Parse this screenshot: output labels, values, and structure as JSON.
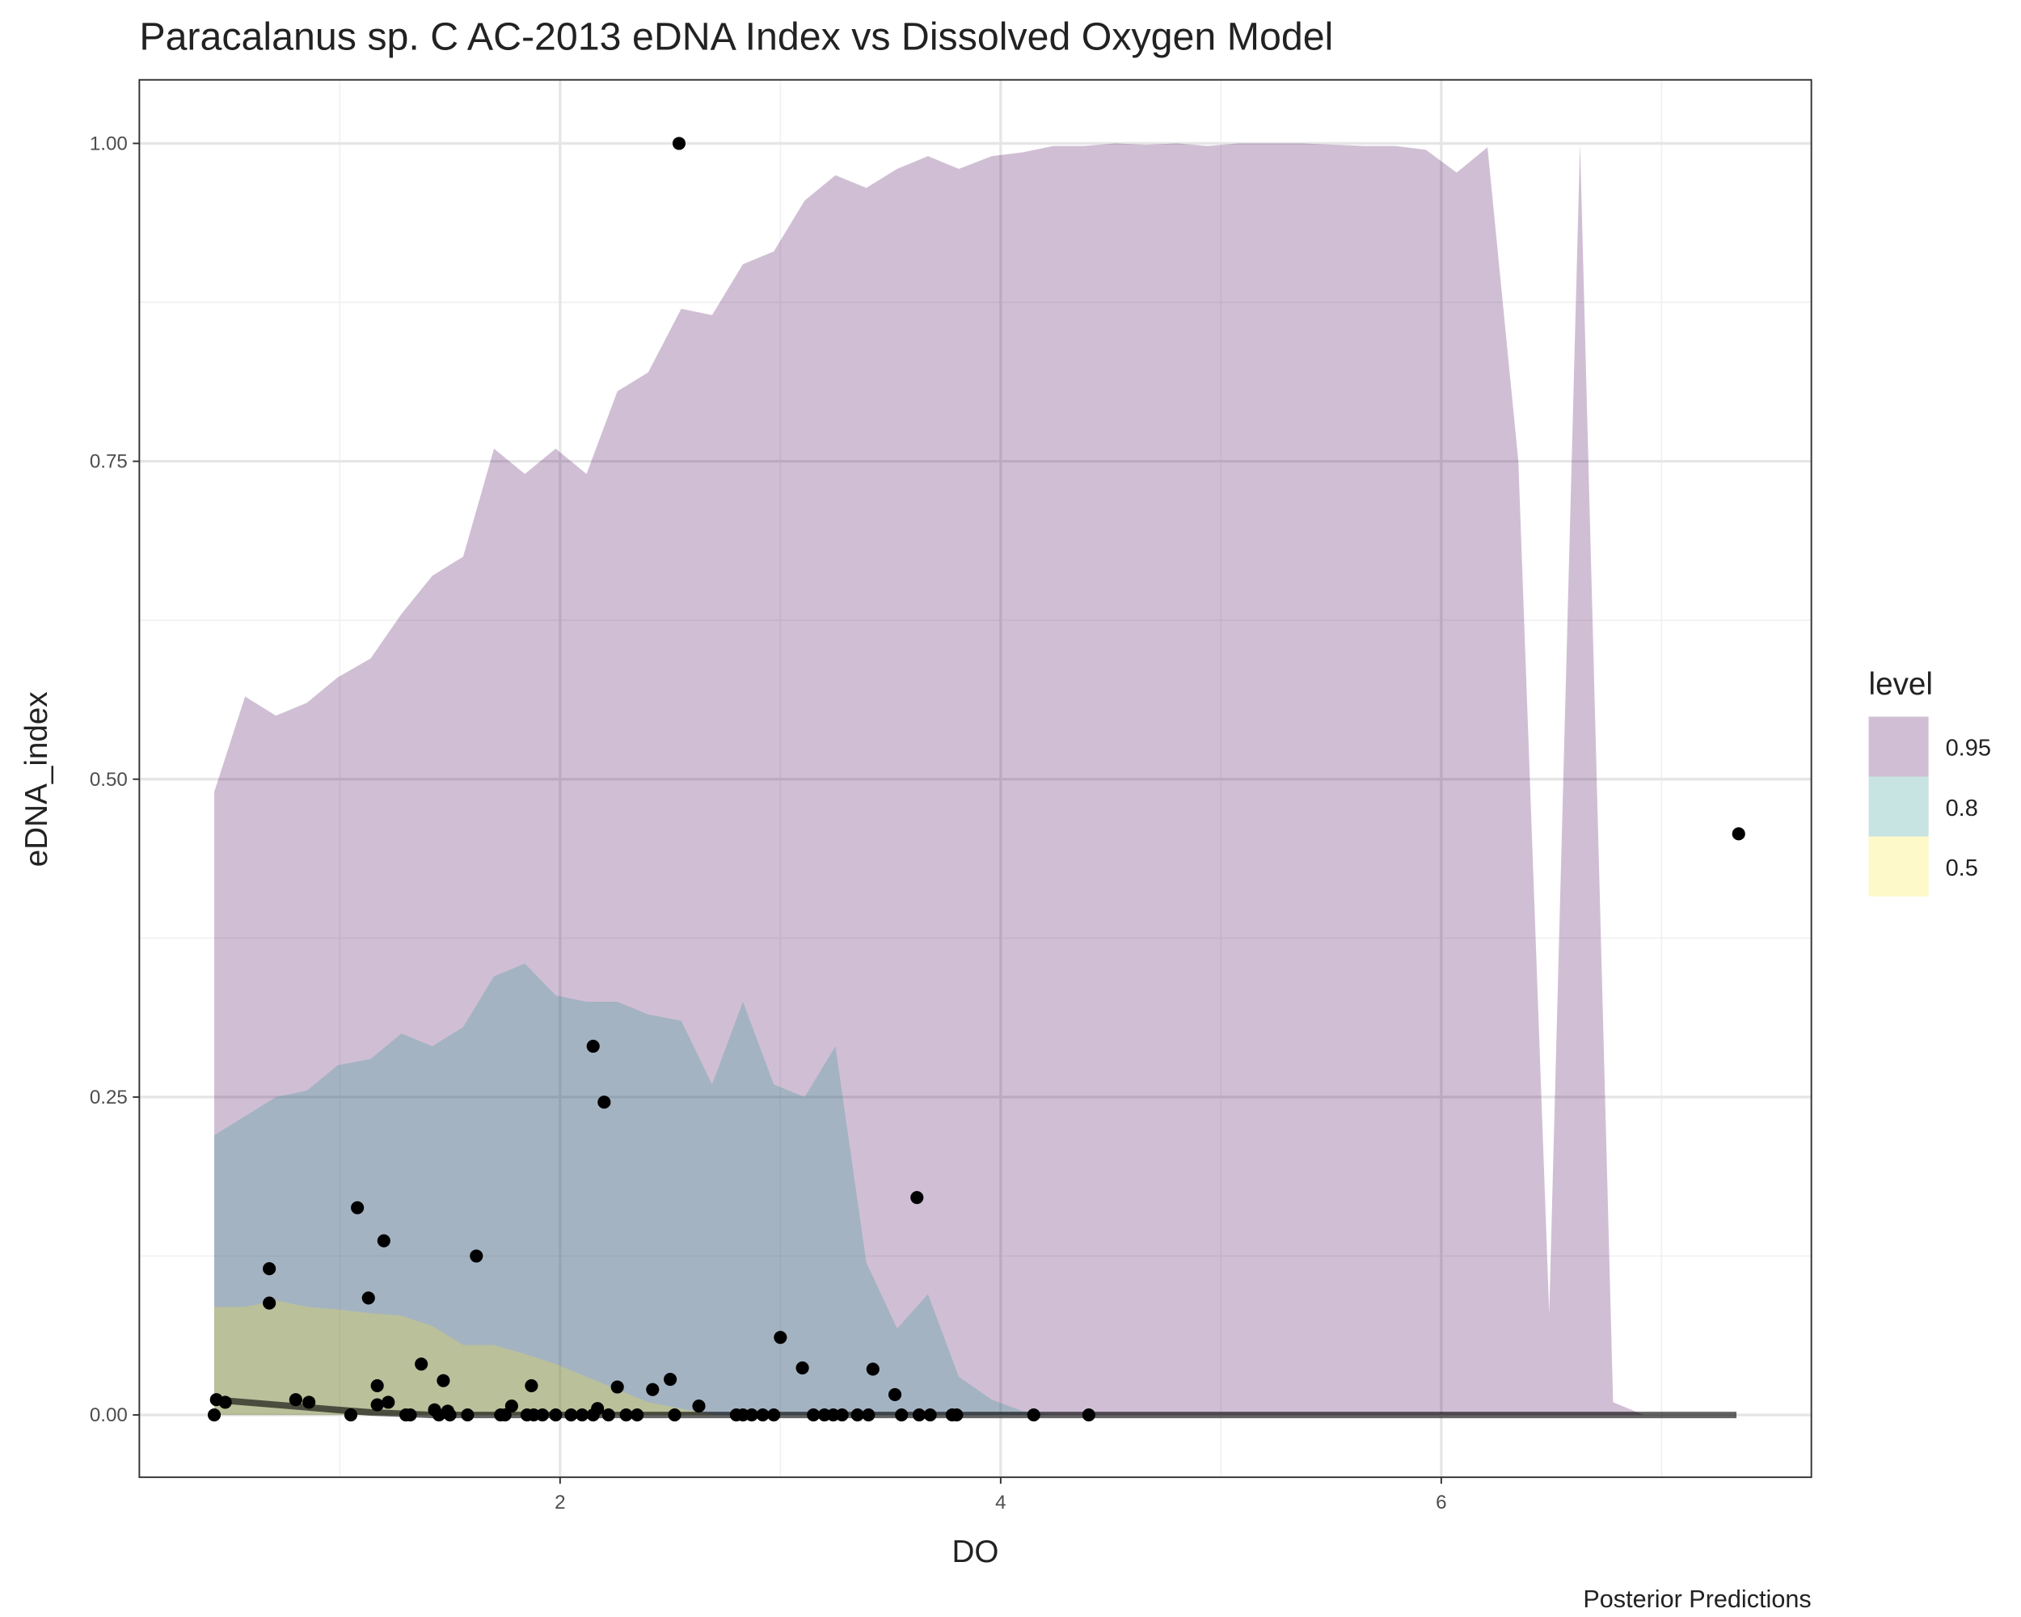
{
  "chart_data": {
    "type": "ribbon",
    "title": "Paracalanus sp. C AC-2013 eDNA Index vs Dissolved Oxygen Model",
    "x_label": "DO",
    "y_label": "eDNA_index",
    "caption": "Posterior Predictions",
    "legend_title": "level",
    "legend_position": "right",
    "opacity": 0.25,
    "xlim": [
      0.09,
      7.68
    ],
    "ylim": [
      -0.049,
      1.05
    ],
    "xticks": [
      2,
      4,
      6
    ],
    "xminor": [
      1,
      3,
      5,
      7
    ],
    "yticks": [
      {
        "value": 0,
        "label": "0.00"
      },
      {
        "value": 0.25,
        "label": "0.25"
      },
      {
        "value": 0.5,
        "label": "0.50"
      },
      {
        "value": 0.75,
        "label": "0.75"
      },
      {
        "value": 1,
        "label": "1.00"
      }
    ],
    "yminor": [
      0.125,
      0.375,
      0.625,
      0.875
    ],
    "grid": true,
    "x": [
      0.43,
      0.57,
      0.71,
      0.85,
      0.99,
      1.14,
      1.28,
      1.42,
      1.56,
      1.7,
      1.84,
      1.98,
      2.12,
      2.26,
      2.4,
      2.55,
      2.69,
      2.83,
      2.97,
      3.11,
      3.25,
      3.39,
      3.53,
      3.67,
      3.81,
      3.96,
      4.1,
      4.24,
      4.38,
      4.52,
      4.66,
      4.8,
      4.94,
      5.08,
      5.22,
      5.37,
      5.51,
      5.65,
      5.79,
      5.93,
      6.07,
      6.21,
      6.35,
      6.49,
      6.63,
      6.78,
      6.92,
      7.06,
      7.2,
      7.34
    ],
    "series": [
      {
        "name": "0.95",
        "color": "#440154",
        "values": [
          0.49,
          0.565,
          0.55,
          0.56,
          0.58,
          0.595,
          0.63,
          0.66,
          0.675,
          0.76,
          0.74,
          0.76,
          0.74,
          0.805,
          0.82,
          0.87,
          0.865,
          0.905,
          0.915,
          0.955,
          0.975,
          0.965,
          0.98,
          0.99,
          0.98,
          0.99,
          0.993,
          0.998,
          0.998,
          1.0,
          0.999,
          1.0,
          0.998,
          1.0,
          1.0,
          1.0,
          0.999,
          0.998,
          0.998,
          0.995,
          0.977,
          0.997,
          0.75,
          0.08,
          1.0,
          0.01,
          0,
          0,
          0,
          0
        ]
      },
      {
        "name": "0.8",
        "color": "#21908C",
        "values": [
          0.22,
          0.235,
          0.25,
          0.255,
          0.275,
          0.28,
          0.3,
          0.29,
          0.305,
          0.345,
          0.355,
          0.33,
          0.325,
          0.325,
          0.315,
          0.31,
          0.26,
          0.325,
          0.26,
          0.25,
          0.29,
          0.12,
          0.068,
          0.095,
          0.03,
          0.012,
          0.003,
          0,
          0,
          0,
          0,
          0,
          0,
          0,
          0,
          0,
          0,
          0,
          0,
          0,
          0,
          0,
          0,
          0,
          0,
          0,
          0,
          0,
          0,
          0
        ]
      },
      {
        "name": "0.5",
        "color": "#FDE725",
        "values": [
          0.085,
          0.085,
          0.09,
          0.085,
          0.083,
          0.08,
          0.078,
          0.07,
          0.055,
          0.055,
          0.048,
          0.04,
          0.03,
          0.02,
          0.01,
          0.005,
          0,
          0,
          0,
          0,
          0,
          0,
          0,
          0,
          0,
          0,
          0,
          0,
          0,
          0,
          0,
          0,
          0,
          0,
          0,
          0,
          0,
          0,
          0,
          0,
          0,
          0,
          0,
          0,
          0,
          0,
          0,
          0,
          0,
          0
        ]
      }
    ],
    "median": {
      "color": "#000000",
      "values": [
        0.012,
        0.01,
        0.008,
        0.006,
        0.004,
        0.002,
        0.001,
        0,
        0,
        0,
        0,
        0,
        0,
        0,
        0,
        0,
        0,
        0,
        0,
        0,
        0,
        0,
        0,
        0,
        0,
        0,
        0,
        0,
        0,
        0,
        0,
        0,
        0,
        0,
        0,
        0,
        0,
        0,
        0,
        0,
        0,
        0,
        0,
        0,
        0,
        0,
        0,
        0,
        0,
        0
      ]
    },
    "points": {
      "color": "#000000",
      "x": [
        0.43,
        0.44,
        0.48,
        0.68,
        0.68,
        0.8,
        0.86,
        1.05,
        1.08,
        1.13,
        1.17,
        1.17,
        1.2,
        1.22,
        1.3,
        1.32,
        1.37,
        1.43,
        1.45,
        1.47,
        1.49,
        1.5,
        1.58,
        1.62,
        1.73,
        1.75,
        1.78,
        1.85,
        1.87,
        1.88,
        1.92,
        1.98,
        2.05,
        2.1,
        2.15,
        2.15,
        2.17,
        2.2,
        2.22,
        2.26,
        2.3,
        2.35,
        2.42,
        2.5,
        2.52,
        2.54,
        2.63,
        2.8,
        2.83,
        2.87,
        2.92,
        2.97,
        3.0,
        3.1,
        3.15,
        3.2,
        3.24,
        3.28,
        3.35,
        3.4,
        3.42,
        3.52,
        3.55,
        3.62,
        3.63,
        3.68,
        3.78,
        3.8,
        4.15,
        4.4,
        7.35
      ],
      "y": [
        0,
        0.012,
        0.01,
        0.115,
        0.088,
        0.012,
        0.01,
        0,
        0.163,
        0.092,
        0.023,
        0.008,
        0.137,
        0.01,
        0,
        0,
        0.04,
        0.004,
        0,
        0.027,
        0.003,
        0,
        0,
        0.125,
        0,
        0,
        0.007,
        0,
        0.023,
        0,
        0,
        0,
        0,
        0,
        0,
        0.29,
        0.005,
        0.246,
        0,
        0.022,
        0,
        0,
        0.02,
        0.028,
        0,
        1.0,
        0.007,
        0,
        0,
        0,
        0,
        0,
        0.061,
        0.037,
        0,
        0,
        0,
        0,
        0,
        0,
        0.036,
        0.016,
        0,
        0.171,
        0,
        0,
        0,
        0,
        0,
        0,
        0.457
      ]
    }
  }
}
